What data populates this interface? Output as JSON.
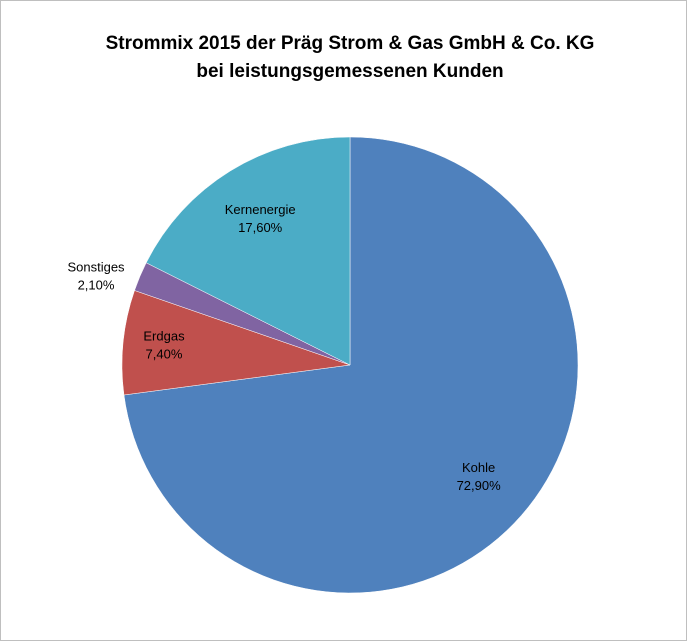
{
  "chart_data": {
    "type": "pie",
    "title": [
      "Strommix  2015 der Präg Strom & Gas GmbH & Co. KG",
      "bei leistungsgemessenen Kunden"
    ],
    "categories": [
      "Kohle",
      "Erdgas",
      "Sonstiges",
      "Kernenergie"
    ],
    "values": [
      72.9,
      7.4,
      2.1,
      17.6
    ],
    "value_labels": [
      "72,90%",
      "7,40%",
      "2,10%",
      "17,60%"
    ],
    "colors": [
      "#4f81bd",
      "#c0504d",
      "#8064a2",
      "#4bacc6"
    ]
  }
}
